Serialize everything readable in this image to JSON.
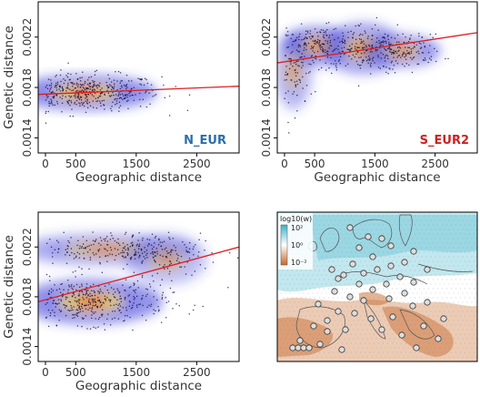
{
  "chart_data": [
    {
      "type": "scatter",
      "panel_label": "N_EUR",
      "label_color": "#2b6ea8",
      "xlabel": "Geographic distance",
      "ylabel": "Genetic distance",
      "xticks": [
        "0",
        "500",
        "1500",
        "2500"
      ],
      "xtick_values": [
        0,
        500,
        1500,
        2500
      ],
      "yticks": [
        "0.0014",
        "0.0018",
        "0.0022"
      ],
      "ytick_values": [
        0.0014,
        0.0018,
        0.0022
      ],
      "xlim": [
        -120,
        3200
      ],
      "ylim": [
        0.00128,
        0.00248
      ],
      "regression_line": {
        "x": [
          -120,
          3200
        ],
        "y": [
          0.001745,
          0.00181
        ]
      },
      "density_clusters": [
        {
          "x": 650,
          "y": 0.00176,
          "sx": 520,
          "sy": 5.5e-05,
          "n": 480,
          "w": 1.0
        }
      ]
    },
    {
      "type": "scatter",
      "panel_label": "S_EUR2",
      "label_color": "#cc2222",
      "xlabel": "Geographic distance",
      "ylabel": "",
      "xticks": [
        "0",
        "500",
        "1500",
        "2500"
      ],
      "xtick_values": [
        0,
        500,
        1500,
        2500
      ],
      "yticks": [
        "0.0014",
        "0.0018",
        "0.0022"
      ],
      "ytick_values": [
        0.0014,
        0.0018,
        0.0022
      ],
      "xlim": [
        -120,
        3200
      ],
      "ylim": [
        0.00128,
        0.00248
      ],
      "regression_line": {
        "x": [
          -120,
          3200
        ],
        "y": [
          0.001995,
          0.002235
        ]
      },
      "density_clusters": [
        {
          "x": 550,
          "y": 0.00213,
          "sx": 260,
          "sy": 6e-05,
          "n": 170,
          "w": 1.0
        },
        {
          "x": 1300,
          "y": 0.00211,
          "sx": 300,
          "sy": 8e-05,
          "n": 170,
          "w": 0.8
        },
        {
          "x": 1950,
          "y": 0.00209,
          "sx": 280,
          "sy": 5e-05,
          "n": 150,
          "w": 0.9
        },
        {
          "x": 150,
          "y": 0.00193,
          "sx": 140,
          "sy": 0.00012,
          "n": 90,
          "w": 0.6
        }
      ]
    },
    {
      "type": "scatter",
      "panel_label": "",
      "label_color": "#333333",
      "xlabel": "Geographic distance",
      "ylabel": "Genetic distance",
      "xticks": [
        "0",
        "500",
        "1500",
        "2500"
      ],
      "xtick_values": [
        0,
        500,
        1500,
        2500
      ],
      "yticks": [
        "0.0014",
        "0.0018",
        "0.0022"
      ],
      "ytick_values": [
        0.0014,
        0.0018,
        0.0022
      ],
      "xlim": [
        -120,
        3200
      ],
      "ylim": [
        0.00128,
        0.00248
      ],
      "regression_line": {
        "x": [
          -120,
          3200
        ],
        "y": [
          0.00176,
          0.0022
        ]
      },
      "density_clusters": [
        {
          "x": 750,
          "y": 0.00176,
          "sx": 520,
          "sy": 7e-05,
          "n": 420,
          "w": 1.0
        },
        {
          "x": 1000,
          "y": 0.00218,
          "sx": 650,
          "sy": 5e-05,
          "n": 260,
          "w": 0.7
        },
        {
          "x": 2000,
          "y": 0.0021,
          "sx": 300,
          "sy": 8e-05,
          "n": 80,
          "w": 0.5
        }
      ]
    }
  ],
  "map_panel": {
    "legend_title": "log10(w)",
    "legend_top": "10²",
    "legend_mid": "10⁰",
    "legend_bottom": "10⁻²",
    "colors": {
      "high": "#4fb9cf",
      "mid": "#ffffff",
      "low": "#c8692a"
    }
  }
}
